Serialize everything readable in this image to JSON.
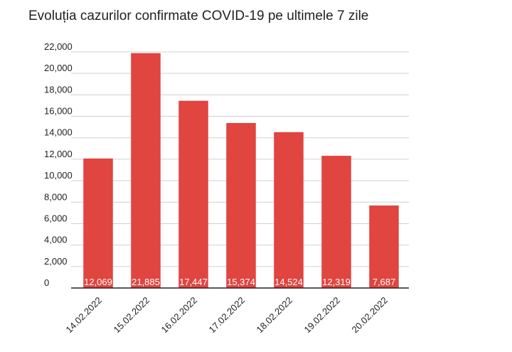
{
  "chart_data": {
    "type": "bar",
    "title": "Evoluția cazurilor confirmate COVID-19 pe ultimele 7 zile",
    "categories": [
      "14.02.2022",
      "15.02.2022",
      "16.02.2022",
      "17.02.2022",
      "18.02.2022",
      "19.02.2022",
      "20.02.2022"
    ],
    "values": [
      12069,
      21885,
      17447,
      15374,
      14524,
      12319,
      7687
    ],
    "value_labels": [
      "12,069",
      "21,885",
      "17,447",
      "15,374",
      "14,524",
      "12,319",
      "7,687"
    ],
    "color": "#e04540",
    "ylim": [
      0,
      22000
    ],
    "yticks": [
      0,
      {
        "value": 2000,
        "label": "2,000"
      },
      {
        "value": 4000,
        "label": "4,000"
      },
      {
        "value": 6000,
        "label": "6,000"
      },
      {
        "value": 8000,
        "label": "8,000"
      },
      {
        "value": 10000,
        "label": "10,000"
      },
      {
        "value": 12000,
        "label": "12,000"
      },
      {
        "value": 14000,
        "label": "14,000"
      },
      {
        "value": 16000,
        "label": "16,000"
      },
      {
        "value": 18000,
        "label": "18,000"
      },
      {
        "value": 20000,
        "label": "20,000"
      },
      {
        "value": 22000,
        "label": "22,000"
      }
    ],
    "grid": true
  }
}
